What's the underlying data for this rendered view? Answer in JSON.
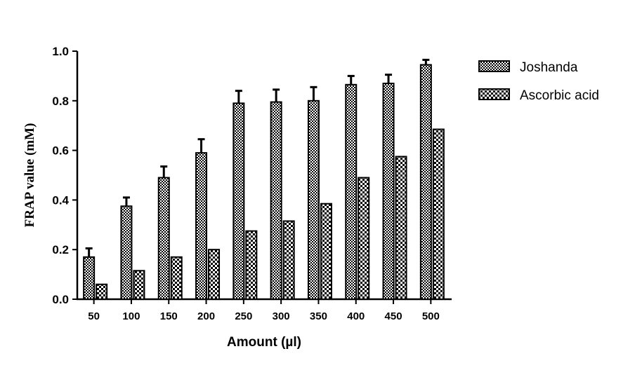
{
  "chart_data": {
    "type": "bar",
    "xlabel": "Amount (µl)",
    "ylabel": "FRAP value (mM)",
    "categories": [
      "50",
      "100",
      "150",
      "200",
      "250",
      "300",
      "350",
      "400",
      "450",
      "500"
    ],
    "ylim": [
      0,
      1.0
    ],
    "yticks": [
      "0.0",
      "0.2",
      "0.4",
      "0.6",
      "0.8",
      "1.0"
    ],
    "yticks_values": [
      0,
      0.2,
      0.4,
      0.6,
      0.8,
      1.0
    ],
    "legend_position": "top-right",
    "grid": false,
    "series": [
      {
        "name": "Joshanda",
        "values": [
          0.17,
          0.375,
          0.49,
          0.59,
          0.79,
          0.795,
          0.8,
          0.865,
          0.87,
          0.945
        ],
        "errors": [
          0.035,
          0.035,
          0.045,
          0.055,
          0.05,
          0.05,
          0.055,
          0.035,
          0.035,
          0.02
        ],
        "pattern": "checker"
      },
      {
        "name": "Ascorbic acid",
        "values": [
          0.06,
          0.115,
          0.17,
          0.2,
          0.275,
          0.315,
          0.385,
          0.49,
          0.575,
          0.685
        ],
        "pattern": "check-large"
      }
    ]
  }
}
